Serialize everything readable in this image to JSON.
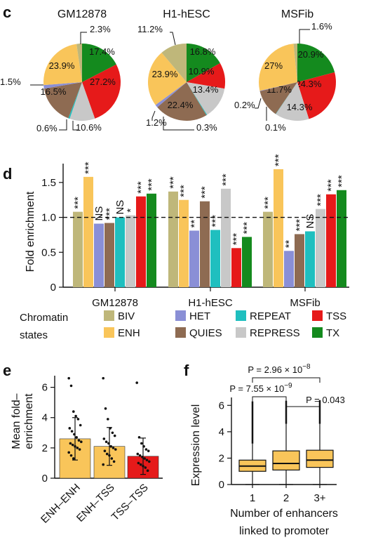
{
  "colors": {
    "BIV": "#bfb77a",
    "ENH": "#f9c55a",
    "HET": "#8a8fd6",
    "REPEAT": "#1fbfbf",
    "QUIES": "#8e6b52",
    "REPRESS": "#c8c8c8",
    "TSS": "#e61a1a",
    "TX": "#148a1e"
  },
  "panels": {
    "c": "c",
    "d": "d",
    "e": "e",
    "f": "f"
  },
  "chart_data": [
    {
      "id": "c",
      "type": "pie",
      "pies": [
        {
          "title": "GM12878",
          "slices": [
            {
              "state": "TX",
              "value": 17.4,
              "label": "17.4%"
            },
            {
              "state": "TSS",
              "value": 27.2,
              "label": "27.2%"
            },
            {
              "state": "REPRESS",
              "value": 10.6,
              "label": "10.6%"
            },
            {
              "state": "REPEAT",
              "value": 0.6,
              "label": "0.6%"
            },
            {
              "state": "QUIES",
              "value": 16.5,
              "label": "16.5%"
            },
            {
              "state": "HET",
              "value": 1.5,
              "label": "1.5%"
            },
            {
              "state": "ENH",
              "value": 23.9,
              "label": "23.9%"
            },
            {
              "state": "BIV",
              "value": 2.3,
              "label": "2.3%"
            }
          ]
        },
        {
          "title": "H1-hESC",
          "slices": [
            {
              "state": "TX",
              "value": 16.8,
              "label": "16.8%"
            },
            {
              "state": "TSS",
              "value": 10.9,
              "label": "10.9%"
            },
            {
              "state": "REPRESS",
              "value": 13.4,
              "label": "13.4%"
            },
            {
              "state": "REPEAT",
              "value": 0.3,
              "label": "0.3%"
            },
            {
              "state": "QUIES",
              "value": 22.4,
              "label": "22.4%"
            },
            {
              "state": "HET",
              "value": 1.2,
              "label": "1.2%"
            },
            {
              "state": "ENH",
              "value": 23.9,
              "label": "23.9%"
            },
            {
              "state": "BIV",
              "value": 11.2,
              "label": "11.2%"
            }
          ]
        },
        {
          "title": "MSFib",
          "slices": [
            {
              "state": "TX",
              "value": 20.9,
              "label": "20.9%"
            },
            {
              "state": "TSS",
              "value": 24.3,
              "label": "24.3%"
            },
            {
              "state": "REPRESS",
              "value": 14.3,
              "label": "14.3%"
            },
            {
              "state": "REPEAT",
              "value": 0.1,
              "label": "0.1%"
            },
            {
              "state": "QUIES",
              "value": 11.7,
              "label": "11.7%"
            },
            {
              "state": "HET",
              "value": 0.2,
              "label": "0.2%"
            },
            {
              "state": "ENH",
              "value": 27.0,
              "label": "27%"
            },
            {
              "state": "BIV",
              "value": 1.6,
              "label": "1.6%"
            }
          ]
        }
      ]
    },
    {
      "id": "d",
      "type": "bar",
      "categories": [
        "GM12878",
        "H1-hESC",
        "MSFib"
      ],
      "series_order": [
        "BIV",
        "ENH",
        "HET",
        "QUIES",
        "REPEAT",
        "REPRESS",
        "TSS",
        "TX"
      ],
      "values": [
        [
          1.08,
          1.58,
          0.91,
          0.92,
          1.0,
          1.03,
          1.3,
          1.34
        ],
        [
          1.37,
          1.25,
          0.81,
          1.23,
          0.82,
          1.41,
          0.56,
          0.72
        ],
        [
          1.08,
          1.69,
          0.52,
          0.76,
          0.8,
          1.12,
          1.33,
          1.39
        ]
      ],
      "significance": [
        [
          "***",
          "***",
          "NS",
          "***",
          "NS",
          "*",
          "***",
          "***"
        ],
        [
          "***",
          "***",
          "**",
          "***",
          "***",
          "***",
          "***",
          "***"
        ],
        [
          "***",
          "***",
          "**",
          "***",
          "NS",
          "***",
          "***",
          "***"
        ]
      ],
      "ylabel": "Fold enrichment",
      "yticks": [
        "0",
        "0.5",
        "1.0",
        "1.5"
      ],
      "ylim": [
        0,
        1.8
      ],
      "reference_line": 1.0,
      "legend_title": "Chromatin states",
      "legend": [
        "BIV",
        "HET",
        "REPEAT",
        "TSS",
        "ENH",
        "QUIES",
        "REPRESS",
        "TX"
      ]
    },
    {
      "id": "e",
      "type": "bar",
      "categories": [
        "ENH–ENH",
        "ENH–TSS",
        "TSS–TSS"
      ],
      "values": [
        2.6,
        2.1,
        1.45
      ],
      "error_high": [
        4.0,
        3.35,
        2.65
      ],
      "error_low": [
        1.2,
        0.85,
        0.25
      ],
      "bar_colors": [
        "#f9c55a",
        "#f9c55a",
        "#e61a1a"
      ],
      "points": [
        [
          6.6,
          6.1,
          4.4,
          4.1,
          3.9,
          3.5,
          3.3,
          3.1,
          2.9,
          2.7,
          2.5,
          2.4,
          2.3,
          2.2,
          2.1,
          2.0,
          1.9,
          1.7,
          1.5,
          1.3
        ],
        [
          6.6,
          4.6,
          3.9,
          3.3,
          3.0,
          2.8,
          2.6,
          2.4,
          2.3,
          2.1,
          2.0,
          1.9,
          1.8,
          1.6,
          1.5,
          1.3,
          1.1,
          0.9
        ],
        [
          6.3,
          2.7,
          2.3,
          2.1,
          1.9,
          1.8,
          1.6,
          1.5,
          1.4,
          1.3,
          1.2,
          1.1,
          1.0,
          0.9,
          0.8,
          0.7,
          0.5
        ]
      ],
      "ylabel": "Mean fold-enrichment",
      "ylabel_lines": [
        "Mean fold–",
        "enrichment"
      ],
      "yticks": [
        "0",
        "2",
        "4",
        "6"
      ],
      "ylim": [
        0,
        7
      ]
    },
    {
      "id": "f",
      "type": "box",
      "categories": [
        "1",
        "2",
        "3+"
      ],
      "boxes": [
        {
          "whisker_low": 0.0,
          "q1": 1.0,
          "median": 1.4,
          "q3": 1.85,
          "whisker_high": 3.1
        },
        {
          "whisker_low": 0.0,
          "q1": 1.1,
          "median": 1.6,
          "q3": 2.55,
          "whisker_high": 4.6
        },
        {
          "whisker_low": 0.0,
          "q1": 1.3,
          "median": 1.85,
          "q3": 2.6,
          "whisker_high": 4.6
        }
      ],
      "outliers_top": [
        6.3,
        6.35,
        6.4
      ],
      "outliers_lower_bound": [
        3.1,
        4.6,
        4.6
      ],
      "outliers_upper_bound": [
        6.3,
        6.35,
        6.4
      ],
      "box_color": "#f9c55a",
      "ylabel": "Expression level",
      "xlabel_lines": [
        "Number of enhancers",
        "linked to promoter"
      ],
      "yticks": [
        "0",
        "2",
        "4",
        "6"
      ],
      "ylim": [
        0,
        6.6
      ],
      "annotations": [
        {
          "text_prefix": "P = 2.96 × 10",
          "exponent": "−8",
          "from": 0,
          "to": 2
        },
        {
          "text_prefix": "P = 7.55 × 10",
          "exponent": "−9",
          "from": 0,
          "to": 1
        },
        {
          "text_prefix": "P = 0.043",
          "exponent": "",
          "from": 1,
          "to": 2
        }
      ]
    }
  ]
}
